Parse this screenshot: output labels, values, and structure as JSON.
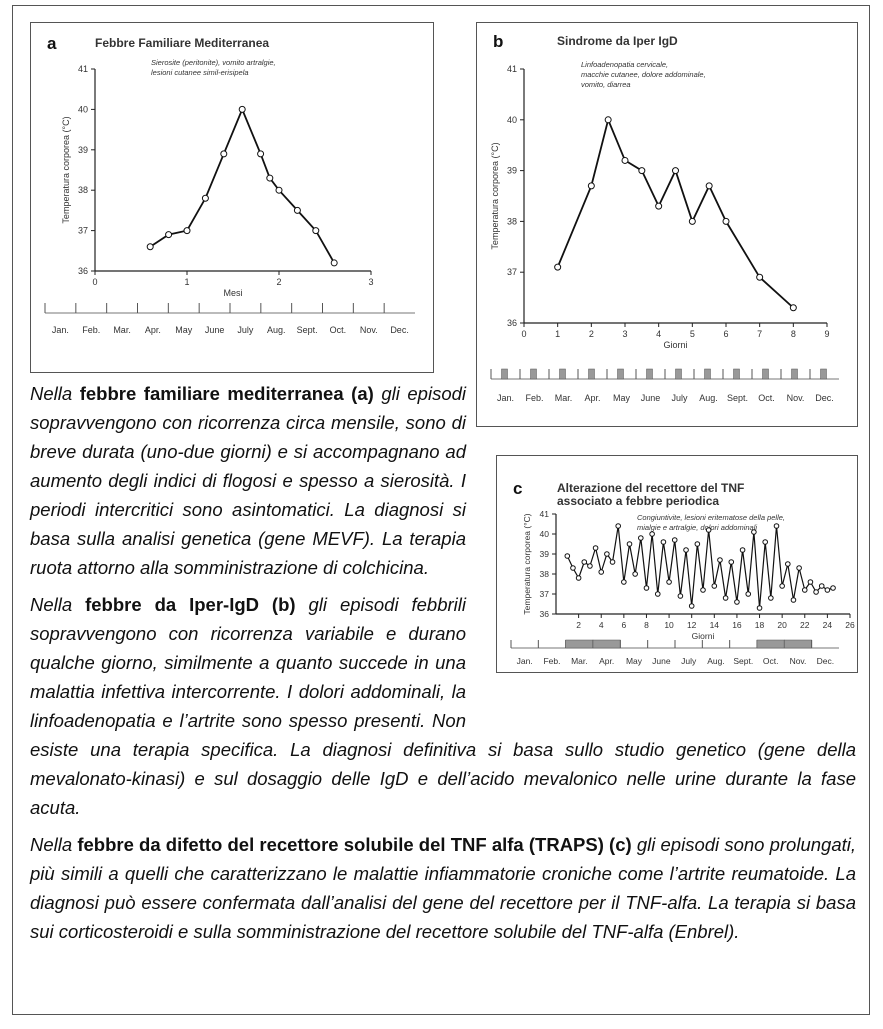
{
  "charts": [
    {
      "label": "a",
      "title_lines": [
        "Febbre Familiare Mediterranea"
      ],
      "annotation_lines": [
        "Sierosite (peritonite), vomito artralgie,",
        "lesioni cutanee simil-erisipela"
      ],
      "y_label": "Temperatura corporea (°C)",
      "x_label": "Mesi",
      "xlim": [
        0,
        3
      ],
      "xticks": [
        0,
        1,
        2,
        3
      ],
      "ylim": [
        36,
        41
      ],
      "yticks": [
        36,
        37,
        38,
        39,
        40,
        41
      ],
      "months": [
        "Jan.",
        "Feb.",
        "Mar.",
        "Apr.",
        "May",
        "June",
        "July",
        "Aug.",
        "Sept.",
        "Oct.",
        "Nov.",
        "Dec."
      ],
      "x": [
        0.6,
        0.8,
        1.0,
        1.2,
        1.4,
        1.6,
        1.8,
        1.9,
        2.0,
        2.2,
        2.4,
        2.6
      ],
      "values": [
        36.6,
        36.9,
        37.0,
        37.8,
        38.9,
        40.0,
        38.9,
        38.3,
        38.0,
        37.5,
        37.0,
        36.2
      ]
    },
    {
      "label": "b",
      "title_lines": [
        "Sindrome da Iper IgD"
      ],
      "annotation_lines": [
        "Linfoadenopatia cervicale,",
        "macchie cutanee, dolore addominale,",
        "vomito, diarrea"
      ],
      "y_label": "Temperatura corporea (°C)",
      "x_label": "Giorni",
      "xlim": [
        0,
        9
      ],
      "xticks": [
        0,
        1,
        2,
        3,
        4,
        5,
        6,
        7,
        8,
        9
      ],
      "ylim": [
        36,
        41
      ],
      "yticks": [
        36,
        37,
        38,
        39,
        40,
        41
      ],
      "months": [
        "Jan.",
        "Feb.",
        "Mar.",
        "Apr.",
        "May",
        "June",
        "July",
        "Aug.",
        "Sept.",
        "Oct.",
        "Nov.",
        "Dec."
      ],
      "x": [
        1,
        2,
        2.5,
        3,
        3.5,
        4,
        4.5,
        5,
        5.5,
        6,
        7,
        8
      ],
      "values": [
        37.1,
        38.7,
        40.0,
        39.2,
        39.0,
        38.3,
        39.0,
        38.0,
        38.7,
        38.0,
        36.9,
        36.3
      ]
    },
    {
      "label": "c",
      "title_lines": [
        "Alterazione del recettore del TNF",
        "associato a febbre periodica"
      ],
      "annotation_lines": [
        "Congiuntivite, lesioni eritematose della pelle,",
        "mialgie e artralgie, dolori addominali"
      ],
      "y_label": "Temperatura corporea (°C)",
      "x_label": "Giorni",
      "xlim": [
        0,
        26
      ],
      "xticks": [
        2,
        4,
        6,
        8,
        10,
        12,
        14,
        16,
        18,
        20,
        22,
        24,
        26
      ],
      "ylim": [
        36,
        41
      ],
      "yticks": [
        36,
        37,
        38,
        39,
        40,
        41
      ],
      "months": [
        "Jan.",
        "Feb.",
        "Mar.",
        "Apr.",
        "May",
        "June",
        "July",
        "Aug.",
        "Sept.",
        "Oct.",
        "Nov.",
        "Dec."
      ],
      "x": [
        1,
        1.5,
        2,
        2.5,
        3,
        3.5,
        4,
        4.5,
        5,
        5.5,
        6,
        6.5,
        7,
        7.5,
        8,
        8.5,
        9,
        9.5,
        10,
        10.5,
        11,
        11.5,
        12,
        12.5,
        13,
        13.5,
        14,
        14.5,
        15,
        15.5,
        16,
        16.5,
        17,
        17.5,
        18,
        18.5,
        19,
        19.5,
        20,
        20.5,
        21,
        21.5,
        22,
        22.5,
        23,
        23.5,
        24,
        24.5
      ],
      "values": [
        38.9,
        38.3,
        37.8,
        38.6,
        38.4,
        39.3,
        38.1,
        39.0,
        38.6,
        40.4,
        37.6,
        39.5,
        38.0,
        39.8,
        37.3,
        40.0,
        37.0,
        39.6,
        37.6,
        39.7,
        36.9,
        39.2,
        36.4,
        39.5,
        37.2,
        40.2,
        37.4,
        38.7,
        36.8,
        38.6,
        36.6,
        39.2,
        37.0,
        40.1,
        36.3,
        39.6,
        36.8,
        40.4,
        37.4,
        38.5,
        36.7,
        38.3,
        37.2,
        37.6,
        37.1,
        37.4,
        37.2,
        37.3
      ]
    }
  ],
  "paragraphs": [
    {
      "lead": "Nella",
      "term": "febbre familiare mediterranea (a)",
      "text": "gli episodi sopravvengono con ricorrenza circa mensile, sono di breve durata (uno-due giorni) e si accompagnano ad aumento degli indici di flogosi e spesso a sierosità. I periodi intercritici sono asintomatici. La diagnosi si basa sulla analisi genetica (gene MEVF). La terapia ruota attorno alla somministrazione di colchicina."
    },
    {
      "lead": "Nella",
      "term": "febbre da Iper-IgD (b)",
      "text": "gli episodi febbrili sopravvengono con ricorrenza variabile e durano qualche giorno, similmente a quanto succede in una malattia infettiva intercorrente. I dolori addominali, la linfoadenopatia e l’artrite sono spesso presenti. Non esiste una terapia specifica. La diagnosi definitiva si basa sullo studio genetico (gene della mevalonato-kinasi) e sul dosaggio delle IgD e dell’acido mevalonico nelle urine durante la fase acuta."
    },
    {
      "lead": "Nella",
      "term": "febbre da difetto del recettore solubile del TNF alfa (TRAPS) (c)",
      "text": "gli episodi sono prolungati, più simili a quelli che caratterizzano le malattie infiammatorie croniche come l’artrite reumatoide. La diagnosi può essere confermata dall’analisi del gene del recettore per il TNF-alfa. La terapia si basa sui corticosteroidi e sulla somministrazione del recettore solubile del TNF-alfa (Enbrel)."
    }
  ]
}
